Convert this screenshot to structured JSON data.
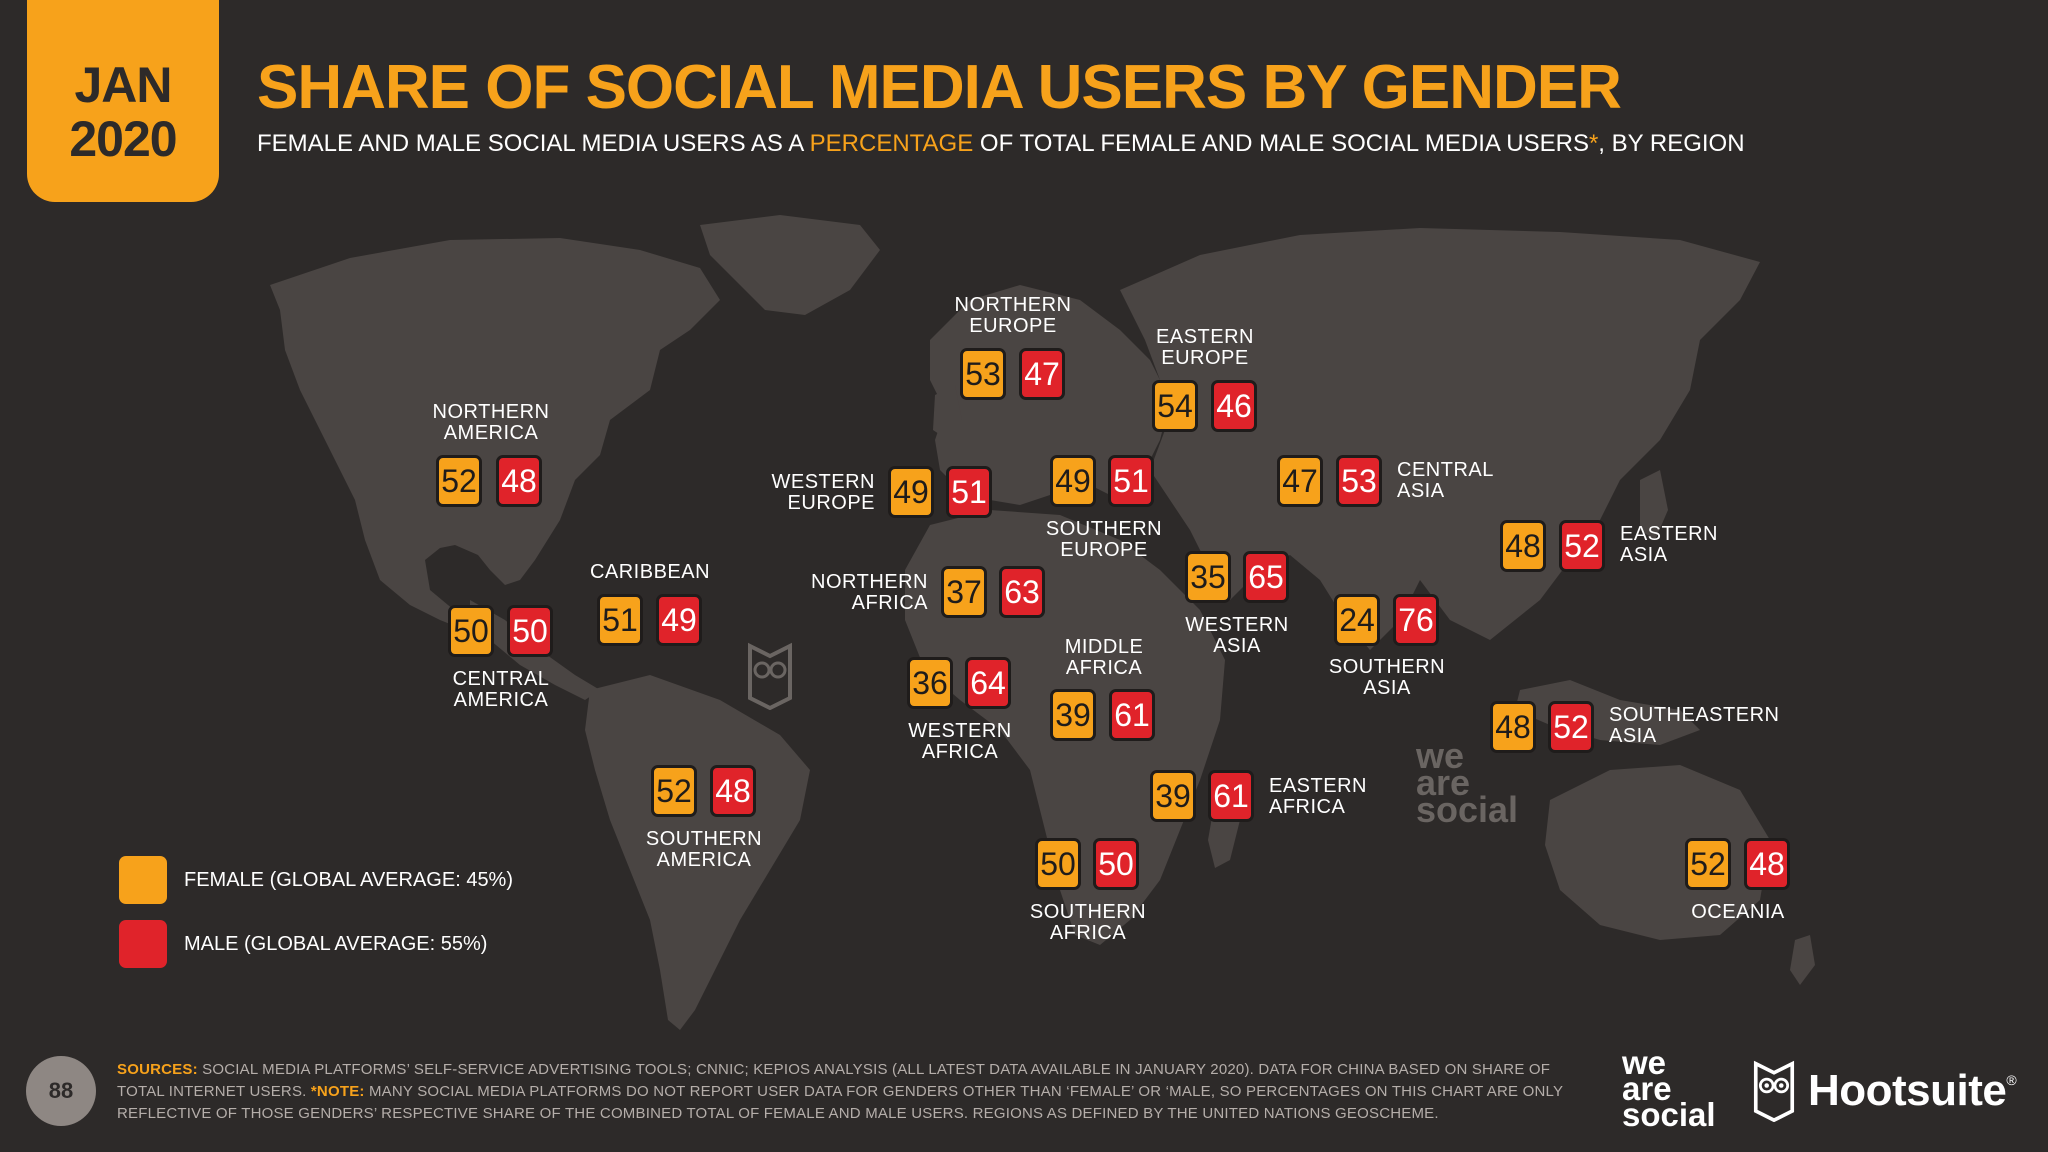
{
  "header": {
    "date_month": "JAN",
    "date_year": "2020",
    "title": "SHARE OF SOCIAL MEDIA USERS BY GENDER",
    "subtitle_part1": "FEMALE AND MALE SOCIAL MEDIA USERS AS A ",
    "subtitle_highlight": "PERCENTAGE",
    "subtitle_part2": " OF TOTAL FEMALE AND MALE SOCIAL MEDIA USERS",
    "subtitle_star": "*",
    "subtitle_part3": ", BY REGION"
  },
  "colors": {
    "background": "#2d2a29",
    "land": "#4a4543",
    "female": "#f7a21b",
    "male": "#e0232a",
    "accent": "#f7a21b"
  },
  "regions": [
    {
      "name": "NORTHERN\nAMERICA",
      "female": "52",
      "male": "48"
    },
    {
      "name": "CENTRAL\nAMERICA",
      "female": "50",
      "male": "50"
    },
    {
      "name": "CARIBBEAN",
      "female": "51",
      "male": "49"
    },
    {
      "name": "SOUTHERN\nAMERICA",
      "female": "52",
      "male": "48"
    },
    {
      "name": "NORTHERN\nEUROPE",
      "female": "53",
      "male": "47"
    },
    {
      "name": "WESTERN\nEUROPE",
      "female": "49",
      "male": "51"
    },
    {
      "name": "SOUTHERN\nEUROPE",
      "female": "49",
      "male": "51"
    },
    {
      "name": "EASTERN\nEUROPE",
      "female": "54",
      "male": "46"
    },
    {
      "name": "NORTHERN\nAFRICA",
      "female": "37",
      "male": "63"
    },
    {
      "name": "WESTERN\nAFRICA",
      "female": "36",
      "male": "64"
    },
    {
      "name": "MIDDLE\nAFRICA",
      "female": "39",
      "male": "61"
    },
    {
      "name": "EASTERN\nAFRICA",
      "female": "39",
      "male": "61"
    },
    {
      "name": "SOUTHERN\nAFRICA",
      "female": "50",
      "male": "50"
    },
    {
      "name": "WESTERN\nASIA",
      "female": "35",
      "male": "65"
    },
    {
      "name": "CENTRAL\nASIA",
      "female": "47",
      "male": "53"
    },
    {
      "name": "SOUTHERN\nASIA",
      "female": "24",
      "male": "76"
    },
    {
      "name": "EASTERN\nASIA",
      "female": "48",
      "male": "52"
    },
    {
      "name": "SOUTHEASTERN\nASIA",
      "female": "48",
      "male": "52"
    },
    {
      "name": "OCEANIA",
      "female": "52",
      "male": "48"
    }
  ],
  "legend": {
    "female": "FEMALE (GLOBAL AVERAGE: 45%)",
    "male": "MALE (GLOBAL AVERAGE: 55%)"
  },
  "footer": {
    "page_number": "88",
    "sources_label": "SOURCES:",
    "sources_text": " SOCIAL MEDIA PLATFORMS’ SELF-SERVICE ADVERTISING TOOLS; CNNIC; KEPIOS ANALYSIS (ALL LATEST DATA AVAILABLE IN JANUARY 2020). DATA FOR CHINA BASED ON SHARE OF TOTAL INTERNET USERS. ",
    "note_label": "*NOTE:",
    "note_text": " MANY SOCIAL MEDIA PLATFORMS DO NOT REPORT USER DATA FOR GENDERS OTHER THAN ‘FEMALE’ OR ‘MALE, SO PERCENTAGES ON THIS CHART ARE ONLY REFLECTIVE OF THOSE GENDERS’ RESPECTIVE SHARE OF THE COMBINED TOTAL OF FEMALE AND MALE USERS. REGIONS AS DEFINED BY THE UNITED NATIONS GEOSCHEME.",
    "logo_we": "we",
    "logo_are": "are",
    "logo_social": "social",
    "logo_hootsuite": "Hootsuite",
    "logo_reg": "®"
  }
}
